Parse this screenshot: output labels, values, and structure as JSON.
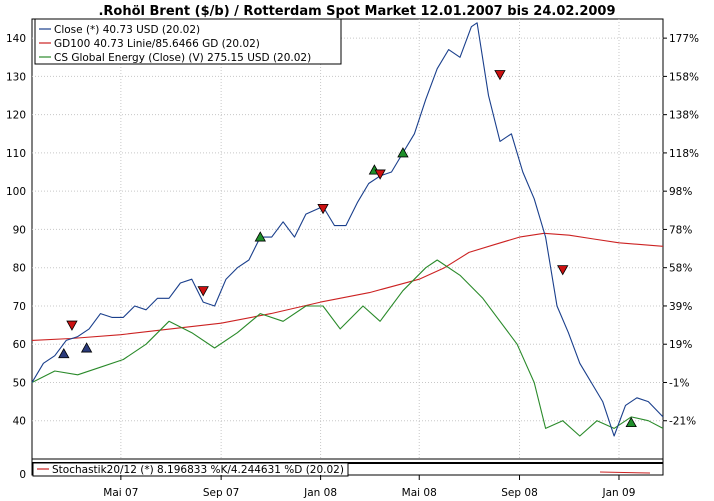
{
  "chart_data": {
    "type": "line",
    "title": ".Rohöl Brent ($/b) / Rotterdam Spot Market 12.01.2007 bis 24.02.2009",
    "x_tick_labels": [
      "Mai 07",
      "Sep 07",
      "Jan 08",
      "Mai 08",
      "Sep 08",
      "Jan 09"
    ],
    "x_ticks_dates": [
      "2007-05-01",
      "2007-09-01",
      "2008-01-01",
      "2008-05-01",
      "2008-09-01",
      "2009-01-01"
    ],
    "x_range": [
      "2007-01-12",
      "2009-02-24"
    ],
    "ylim": [
      30,
      145
    ],
    "y_ticks": [
      40,
      50,
      60,
      70,
      80,
      90,
      100,
      110,
      120,
      130,
      140
    ],
    "right_axis_labels": [
      "177%",
      "158%",
      "138%",
      "118%",
      "98%",
      "78%",
      "58%",
      "39%",
      "19%",
      "-1%",
      "-21%"
    ],
    "grid": true,
    "legend_position": "top-left",
    "series": [
      {
        "name": "Close (*) 40.73 USD (20.02)",
        "color": "#1a3f8c",
        "points": [
          [
            "2007-01-12",
            50
          ],
          [
            "2007-01-26",
            55
          ],
          [
            "2007-02-09",
            57
          ],
          [
            "2007-02-23",
            61
          ],
          [
            "2007-03-09",
            62
          ],
          [
            "2007-03-23",
            64
          ],
          [
            "2007-04-06",
            68
          ],
          [
            "2007-04-20",
            67
          ],
          [
            "2007-05-04",
            67
          ],
          [
            "2007-05-18",
            70
          ],
          [
            "2007-06-01",
            69
          ],
          [
            "2007-06-15",
            72
          ],
          [
            "2007-06-29",
            72
          ],
          [
            "2007-07-13",
            76
          ],
          [
            "2007-07-27",
            77
          ],
          [
            "2007-08-10",
            71
          ],
          [
            "2007-08-24",
            70
          ],
          [
            "2007-09-07",
            77
          ],
          [
            "2007-09-21",
            80
          ],
          [
            "2007-10-05",
            82
          ],
          [
            "2007-10-19",
            88
          ],
          [
            "2007-11-02",
            88
          ],
          [
            "2007-11-16",
            92
          ],
          [
            "2007-11-30",
            88
          ],
          [
            "2007-12-14",
            94
          ],
          [
            "2008-01-04",
            96
          ],
          [
            "2008-01-18",
            91
          ],
          [
            "2008-02-01",
            91
          ],
          [
            "2008-02-15",
            97
          ],
          [
            "2008-02-29",
            102
          ],
          [
            "2008-03-14",
            104
          ],
          [
            "2008-03-28",
            105
          ],
          [
            "2008-04-11",
            110
          ],
          [
            "2008-04-25",
            115
          ],
          [
            "2008-05-09",
            124
          ],
          [
            "2008-05-23",
            132
          ],
          [
            "2008-06-06",
            137
          ],
          [
            "2008-06-20",
            135
          ],
          [
            "2008-07-04",
            143
          ],
          [
            "2008-07-11",
            144
          ],
          [
            "2008-07-25",
            125
          ],
          [
            "2008-08-08",
            113
          ],
          [
            "2008-08-22",
            115
          ],
          [
            "2008-09-05",
            105
          ],
          [
            "2008-09-19",
            98
          ],
          [
            "2008-10-03",
            88
          ],
          [
            "2008-10-17",
            70
          ],
          [
            "2008-10-31",
            63
          ],
          [
            "2008-11-14",
            55
          ],
          [
            "2008-11-28",
            50
          ],
          [
            "2008-12-12",
            45
          ],
          [
            "2008-12-26",
            36
          ],
          [
            "2009-01-09",
            44
          ],
          [
            "2009-01-23",
            46
          ],
          [
            "2009-02-06",
            45
          ],
          [
            "2009-02-24",
            41
          ]
        ]
      },
      {
        "name": "GD100 40.73 Linie/85.6466 GD (20.02)",
        "color": "#cc2222",
        "points": [
          [
            "2007-01-12",
            61
          ],
          [
            "2007-03-01",
            61.5
          ],
          [
            "2007-05-01",
            62.5
          ],
          [
            "2007-07-01",
            64
          ],
          [
            "2007-09-01",
            65.5
          ],
          [
            "2007-11-01",
            68
          ],
          [
            "2008-01-01",
            71
          ],
          [
            "2008-03-01",
            73.5
          ],
          [
            "2008-05-01",
            77
          ],
          [
            "2008-06-01",
            80
          ],
          [
            "2008-07-01",
            84
          ],
          [
            "2008-08-01",
            86
          ],
          [
            "2008-09-01",
            88
          ],
          [
            "2008-10-01",
            89
          ],
          [
            "2008-11-01",
            88.5
          ],
          [
            "2008-12-01",
            87.5
          ],
          [
            "2009-01-01",
            86.5
          ],
          [
            "2009-02-24",
            85.6
          ]
        ]
      },
      {
        "name": "CS Global Energy (Close) (V) 275.15 USD (20.02)",
        "color": "#2a8a2a",
        "points": [
          [
            "2007-01-12",
            50
          ],
          [
            "2007-02-09",
            53
          ],
          [
            "2007-03-09",
            52
          ],
          [
            "2007-04-06",
            54
          ],
          [
            "2007-05-04",
            56
          ],
          [
            "2007-06-01",
            60
          ],
          [
            "2007-06-29",
            66
          ],
          [
            "2007-07-27",
            63
          ],
          [
            "2007-08-24",
            59
          ],
          [
            "2007-09-21",
            63
          ],
          [
            "2007-10-19",
            68
          ],
          [
            "2007-11-16",
            66
          ],
          [
            "2007-12-14",
            70
          ],
          [
            "2008-01-04",
            70
          ],
          [
            "2008-01-25",
            64
          ],
          [
            "2008-02-22",
            70
          ],
          [
            "2008-03-14",
            66
          ],
          [
            "2008-04-11",
            74
          ],
          [
            "2008-05-09",
            80
          ],
          [
            "2008-05-23",
            82
          ],
          [
            "2008-06-20",
            78
          ],
          [
            "2008-07-18",
            72
          ],
          [
            "2008-08-08",
            66
          ],
          [
            "2008-08-29",
            60
          ],
          [
            "2008-09-19",
            50
          ],
          [
            "2008-10-03",
            38
          ],
          [
            "2008-10-24",
            40
          ],
          [
            "2008-11-14",
            36
          ],
          [
            "2008-12-05",
            40
          ],
          [
            "2008-12-26",
            38
          ],
          [
            "2009-01-16",
            41
          ],
          [
            "2009-02-06",
            40
          ],
          [
            "2009-02-24",
            38
          ]
        ]
      }
    ],
    "signals": [
      {
        "date": "2007-03-02",
        "value": 65,
        "type": "sell"
      },
      {
        "date": "2007-02-20",
        "value": 57.5,
        "type": "hold"
      },
      {
        "date": "2007-03-20",
        "value": 59,
        "type": "hold"
      },
      {
        "date": "2007-08-10",
        "value": 74,
        "type": "sell"
      },
      {
        "date": "2007-10-19",
        "value": 88,
        "type": "buy"
      },
      {
        "date": "2008-01-04",
        "value": 95.5,
        "type": "sell"
      },
      {
        "date": "2008-03-07",
        "value": 105.5,
        "type": "buy"
      },
      {
        "date": "2008-03-14",
        "value": 104.5,
        "type": "sell"
      },
      {
        "date": "2008-04-11",
        "value": 110,
        "type": "buy"
      },
      {
        "date": "2008-08-08",
        "value": 130.5,
        "type": "sell"
      },
      {
        "date": "2008-10-24",
        "value": 79.5,
        "type": "sell"
      },
      {
        "date": "2009-01-16",
        "value": 39.5,
        "type": "buy"
      }
    ],
    "lower_panel": {
      "legend": "Stochastik20/12 (*) 8.196833 %K/4.244631 %D (20.02)",
      "y_tick": "0"
    }
  }
}
